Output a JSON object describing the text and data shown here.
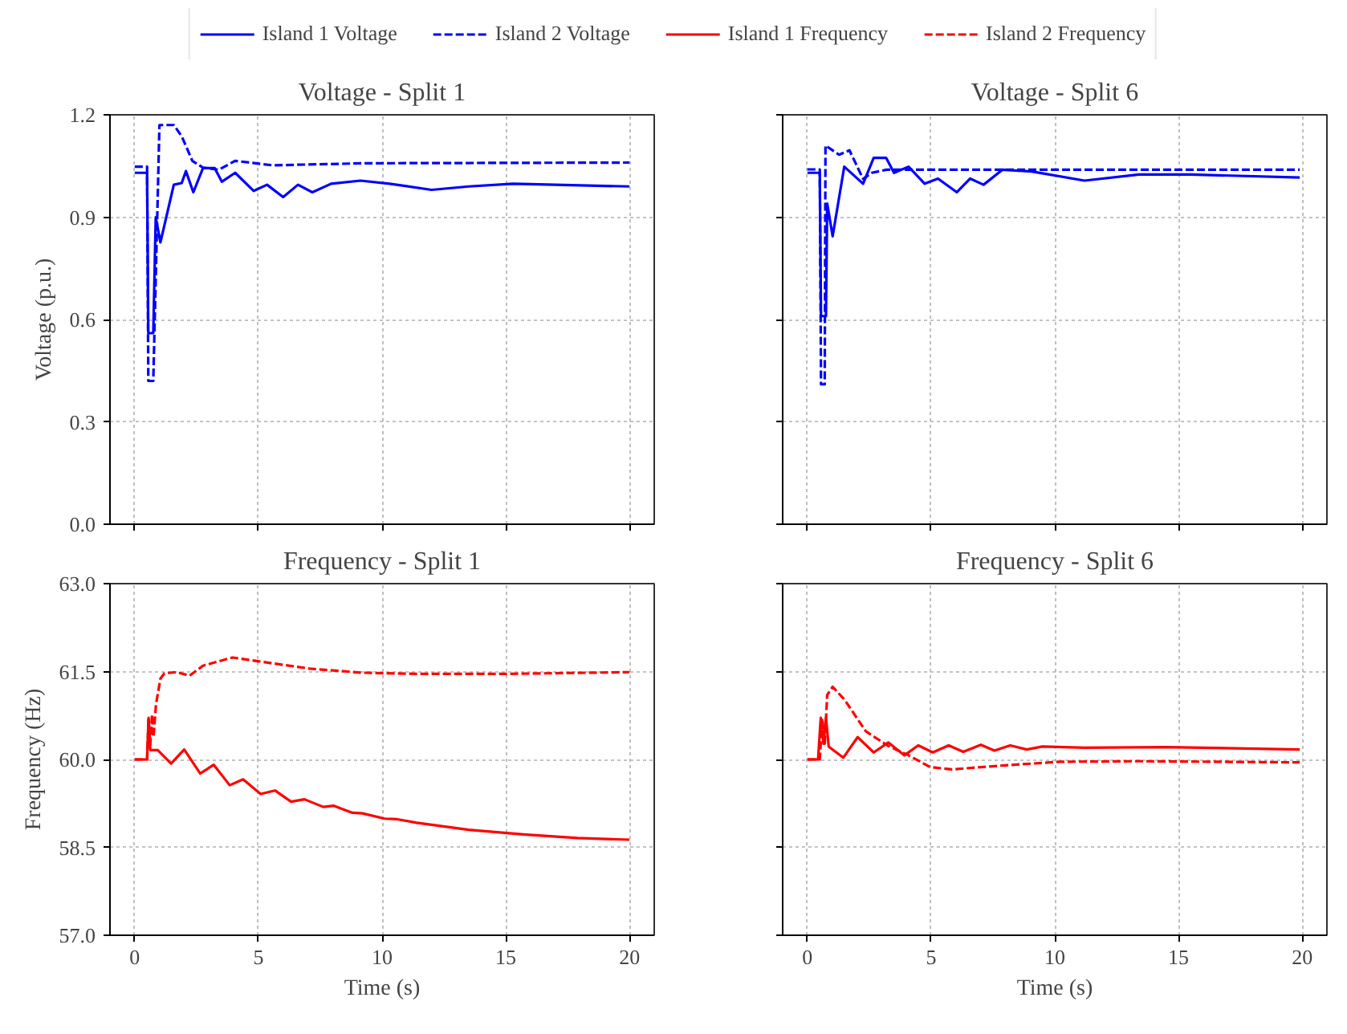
{
  "chart_data": [
    {
      "type": "line",
      "title": "Voltage - Split 1",
      "ylabel": "Voltage (p.u.)",
      "xlim": [
        -1,
        21
      ],
      "ylim": [
        0,
        1.2
      ],
      "xticks": [
        0,
        5,
        10,
        15,
        20
      ],
      "yticks": [
        {
          "value": 0,
          "label": "0.0"
        },
        0.3,
        0.6,
        0.9,
        1.2
      ],
      "grid": true,
      "legend": "top",
      "tick_labels": "y",
      "series": [
        {
          "name": "Island 1 Voltage",
          "color": "#0000ff",
          "line_style": "solid",
          "x": [
            0,
            0.5,
            0.55,
            0.75,
            0.85,
            1.04,
            1.58,
            1.9,
            2.07,
            2.37,
            2.76,
            3.23,
            3.52,
            4.06,
            4.81,
            5.35,
            6.0,
            6.6,
            7.18,
            7.94,
            9.13,
            10.3,
            12.0,
            13.5,
            15.3,
            20
          ],
          "values": [
            1.03,
            1.03,
            0.56,
            0.56,
            0.9,
            0.826,
            0.995,
            1.0,
            1.035,
            0.973,
            1.044,
            1.044,
            1.004,
            1.03,
            0.977,
            0.995,
            0.959,
            0.995,
            0.973,
            0.998,
            1.007,
            0.998,
            0.98,
            0.99,
            0.998,
            0.99
          ]
        },
        {
          "name": "Island 2 Voltage",
          "color": "#0000ff",
          "line_style": "dashed",
          "x": [
            0,
            0.5,
            0.55,
            0.75,
            1.0,
            1.58,
            1.9,
            2.33,
            2.76,
            3.4,
            4.06,
            5.57,
            9.3,
            20
          ],
          "values": [
            1.048,
            1.048,
            0.42,
            0.42,
            1.17,
            1.17,
            1.137,
            1.065,
            1.045,
            1.039,
            1.065,
            1.052,
            1.058,
            1.06
          ]
        }
      ]
    },
    {
      "type": "line",
      "title": "Voltage - Split 6",
      "xlim": [
        -1,
        21
      ],
      "ylim": [
        0,
        1.2
      ],
      "xticks": [
        0,
        5,
        10,
        15,
        20
      ],
      "yticks": [
        0,
        0.3,
        0.6,
        0.9,
        1.2
      ],
      "grid": true,
      "legend": "top",
      "tick_labels": false,
      "series": [
        {
          "name": "Island 1 Voltage",
          "color": "#0000ff",
          "line_style": "solid",
          "x": [
            0,
            0.5,
            0.55,
            0.75,
            0.8,
            1.02,
            1.49,
            2.25,
            2.68,
            3.18,
            3.5,
            4.09,
            4.74,
            5.28,
            6.04,
            6.58,
            7.12,
            7.88,
            9.07,
            11.2,
            13.4,
            15.5,
            19.9
          ],
          "values": [
            1.03,
            1.03,
            0.61,
            0.61,
            0.94,
            0.844,
            1.048,
            0.998,
            1.074,
            1.074,
            1.03,
            1.048,
            0.998,
            1.013,
            0.973,
            1.013,
            0.995,
            1.039,
            1.034,
            1.007,
            1.025,
            1.025,
            1.016
          ]
        },
        {
          "name": "Island 2 Voltage",
          "color": "#0000ff",
          "line_style": "dashed",
          "x": [
            0,
            0.5,
            0.55,
            0.7,
            0.73,
            1.28,
            1.7,
            2.25,
            2.6,
            3.2,
            19.9
          ],
          "values": [
            1.04,
            1.04,
            0.41,
            0.41,
            1.11,
            1.083,
            1.096,
            1.012,
            1.03,
            1.039,
            1.039
          ]
        }
      ]
    },
    {
      "type": "line",
      "title": "Frequency - Split 1",
      "xlabel": "Time (s)",
      "ylabel": "Frequency (Hz)",
      "xlim": [
        -1,
        21
      ],
      "ylim": [
        57,
        63
      ],
      "xticks": [
        0,
        5,
        10,
        15,
        20
      ],
      "yticks": [
        {
          "value": 57,
          "label": "57.0"
        },
        58.5,
        {
          "value": 60,
          "label": "60.0"
        },
        61.5,
        {
          "value": 63,
          "label": "63.0"
        }
      ],
      "grid": true,
      "legend": "top",
      "series": [
        {
          "name": "Island 1 Frequency",
          "color": "#ff0000",
          "line_style": "solid",
          "x": [
            0,
            0.5,
            0.56,
            0.63,
            0.93,
            1.47,
            2.0,
            2.65,
            3.19,
            3.84,
            4.38,
            5.09,
            5.67,
            6.32,
            6.86,
            7.62,
            8.05,
            8.8,
            9.2,
            10.1,
            10.6,
            11.4,
            13.5,
            15.7,
            17.9,
            20
          ],
          "values": [
            60,
            60,
            60.71,
            60.16,
            60.16,
            59.93,
            60.17,
            59.76,
            59.91,
            59.56,
            59.66,
            59.41,
            59.47,
            59.28,
            59.32,
            59.19,
            59.21,
            59.09,
            59.08,
            58.99,
            58.98,
            58.92,
            58.8,
            58.72,
            58.66,
            58.63
          ]
        },
        {
          "name": "Island 2 Frequency",
          "color": "#ff0000",
          "line_style": "dashed",
          "x": [
            0,
            0.5,
            0.56,
            0.63,
            0.7,
            0.76,
            0.86,
            1.04,
            1.2,
            1.68,
            2.22,
            2.76,
            3.95,
            4.92,
            7.07,
            9.2,
            11.4,
            15.0,
            20
          ],
          "values": [
            60,
            60,
            60.7,
            60.25,
            60.77,
            60.38,
            60.94,
            61.38,
            61.47,
            61.49,
            61.43,
            61.6,
            61.74,
            61.68,
            61.55,
            61.48,
            61.46,
            61.46,
            61.49
          ]
        }
      ]
    },
    {
      "type": "line",
      "title": "Frequency - Split 6",
      "xlabel": "Time (s)",
      "xlim": [
        -1,
        21
      ],
      "ylim": [
        57,
        63
      ],
      "xticks": [
        0,
        5,
        10,
        15,
        20
      ],
      "yticks": [
        57,
        58.5,
        60,
        61.5,
        63
      ],
      "grid": true,
      "legend": "top",
      "tick_labels": "x",
      "series": [
        {
          "name": "Island 1 Frequency",
          "color": "#ff0000",
          "line_style": "solid",
          "x": [
            0,
            0.43,
            0.54,
            0.65,
            0.75,
            0.86,
            1.45,
            2.03,
            2.68,
            3.27,
            3.92,
            4.48,
            5.07,
            5.71,
            6.3,
            7.01,
            7.56,
            8.2,
            8.87,
            9.5,
            11.2,
            14.5,
            19.9
          ],
          "values": [
            60,
            60,
            60.71,
            60.27,
            60.71,
            60.22,
            60.03,
            60.38,
            60.12,
            60.29,
            60.07,
            60.24,
            60.12,
            60.24,
            60.13,
            60.25,
            60.15,
            60.24,
            60.17,
            60.22,
            60.2,
            60.21,
            60.17
          ]
        },
        {
          "name": "Island 2 Frequency",
          "color": "#ff0000",
          "line_style": "dashed",
          "x": [
            0,
            0.5,
            0.6,
            0.7,
            0.8,
            1.02,
            1.5,
            2.36,
            3.23,
            4.09,
            4.96,
            5.83,
            7.99,
            10.2,
            13.4,
            19.9
          ],
          "values": [
            60,
            60,
            60.7,
            60.27,
            61.1,
            61.24,
            61.02,
            60.48,
            60.24,
            60.07,
            59.87,
            59.83,
            59.9,
            59.96,
            59.97,
            59.95
          ]
        }
      ]
    }
  ]
}
